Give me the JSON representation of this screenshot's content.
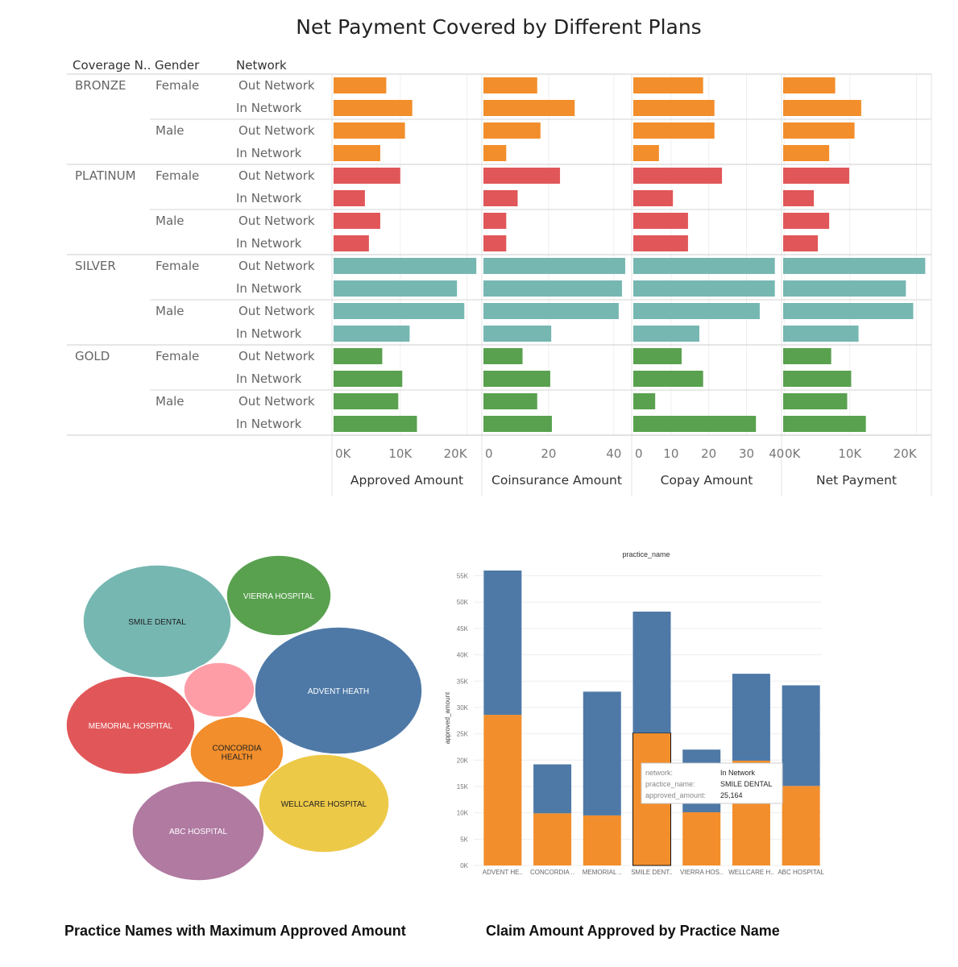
{
  "captions": {
    "bubble": "Practice Names with Maximum Approved Amount",
    "stacked": "Claim Amount Approved by Practice Name"
  },
  "chart_data": [
    {
      "type": "bar",
      "orientation": "horizontal",
      "title": "Net Payment Covered by Different Plans",
      "row_headers": [
        "Coverage N..",
        "Gender",
        "Network"
      ],
      "rows": [
        {
          "coverage": "BRONZE",
          "gender": "Female",
          "network": "Out Network"
        },
        {
          "coverage": "",
          "gender": "",
          "network": "In Network"
        },
        {
          "coverage": "",
          "gender": "Male",
          "network": "Out Network"
        },
        {
          "coverage": "",
          "gender": "",
          "network": "In Network"
        },
        {
          "coverage": "PLATINUM",
          "gender": "Female",
          "network": "Out Network"
        },
        {
          "coverage": "",
          "gender": "",
          "network": "In Network"
        },
        {
          "coverage": "",
          "gender": "Male",
          "network": "Out Network"
        },
        {
          "coverage": "",
          "gender": "",
          "network": "In Network"
        },
        {
          "coverage": "SILVER",
          "gender": "Female",
          "network": "Out Network"
        },
        {
          "coverage": "",
          "gender": "",
          "network": "In Network"
        },
        {
          "coverage": "",
          "gender": "Male",
          "network": "Out Network"
        },
        {
          "coverage": "",
          "gender": "",
          "network": "In Network"
        },
        {
          "coverage": "GOLD",
          "gender": "Female",
          "network": "Out Network"
        },
        {
          "coverage": "",
          "gender": "",
          "network": "In Network"
        },
        {
          "coverage": "",
          "gender": "Male",
          "network": "Out Network"
        },
        {
          "coverage": "",
          "gender": "",
          "network": "In Network"
        }
      ],
      "row_colors": [
        "#f28e2b",
        "#f28e2b",
        "#f28e2b",
        "#f28e2b",
        "#e15759",
        "#e15759",
        "#e15759",
        "#e15759",
        "#76b7b2",
        "#76b7b2",
        "#76b7b2",
        "#76b7b2",
        "#59a14f",
        "#59a14f",
        "#59a14f",
        "#59a14f"
      ],
      "panels": [
        {
          "label": "Approved Amount",
          "xlim": [
            0,
            21500
          ],
          "ticks": [
            "0K",
            "10K",
            "20K"
          ],
          "tick_values": [
            0,
            10000,
            20000
          ],
          "values": [
            7900,
            11800,
            10700,
            7000,
            10000,
            4700,
            7000,
            5300,
            21400,
            18500,
            19600,
            11400,
            7300,
            10300,
            9700,
            12500
          ]
        },
        {
          "label": "Coinsurance Amount",
          "xlim": [
            0,
            44
          ],
          "ticks": [
            "0",
            "20",
            "40"
          ],
          "tick_values": [
            0,
            20,
            40
          ],
          "values": [
            16.5,
            28,
            17.5,
            7,
            23.5,
            10.5,
            7,
            7,
            43.5,
            42.5,
            41.5,
            20.8,
            12,
            20.5,
            16.5,
            21
          ]
        },
        {
          "label": "Copay Amount",
          "xlim": [
            0,
            38
          ],
          "ticks": [
            "0",
            "10",
            "20",
            "30",
            "40"
          ],
          "tick_values": [
            0,
            10,
            20,
            30,
            40
          ],
          "values": [
            18.5,
            21.5,
            21.5,
            6.8,
            23.5,
            10.5,
            14.5,
            14.5,
            37.5,
            37.5,
            33.5,
            17.5,
            12.8,
            18.5,
            5.8,
            32.5
          ]
        },
        {
          "label": "Net Payment",
          "xlim": [
            0,
            21500
          ],
          "ticks": [
            "0K",
            "10K",
            "20K"
          ],
          "tick_values": [
            0,
            10000,
            20000
          ],
          "values": [
            7800,
            11700,
            10700,
            6900,
            9900,
            4600,
            6900,
            5200,
            21300,
            18400,
            19500,
            11300,
            7200,
            10200,
            9600,
            12400
          ]
        }
      ]
    },
    {
      "type": "bubble",
      "bubbles": [
        {
          "label": "SMILE DENTAL",
          "color": "#76b7b2"
        },
        {
          "label": "VIERRA HOSPITAL",
          "color": "#59a14f"
        },
        {
          "label": "ADVENT HEATH",
          "color": "#4e79a7"
        },
        {
          "label": "",
          "color": "#ff9da7"
        },
        {
          "label": "MEMORIAL HOSPITAL",
          "color": "#e15759"
        },
        {
          "label": "CONCORDIA HEALTH",
          "color": "#f28e2b"
        },
        {
          "label": "WELLCARE HOSPITAL",
          "color": "#edc948"
        },
        {
          "label": "ABC HOSPITAL",
          "color": "#b07aa1"
        }
      ]
    },
    {
      "type": "bar",
      "stacked": true,
      "title": "practice_name",
      "ylabel": "approved_amount",
      "ylim": [
        0,
        56000
      ],
      "yticks": [
        "0K",
        "5K",
        "10K",
        "15K",
        "20K",
        "25K",
        "30K",
        "35K",
        "40K",
        "45K",
        "50K",
        "55K"
      ],
      "ytick_values": [
        0,
        5000,
        10000,
        15000,
        20000,
        25000,
        30000,
        35000,
        40000,
        45000,
        50000,
        55000
      ],
      "categories": [
        "ADVENT HE..",
        "CONCORDIA ..",
        "MEMORIAL ..",
        "SMILE DENT..",
        "VIERRA HOS..",
        "WELLCARE H..",
        "ABC HOSPITAL"
      ],
      "series": [
        {
          "color": "#f28e2b",
          "values": [
            28600,
            9900,
            9500,
            25164,
            10100,
            19900,
            15100
          ]
        },
        {
          "color": "#4e79a7",
          "values": [
            27400,
            9300,
            23500,
            23036,
            11900,
            16500,
            19100
          ]
        }
      ],
      "highlight_index": 3,
      "tooltip": {
        "rows": [
          {
            "key": "network:",
            "value": "In Network"
          },
          {
            "key": "practice_name:",
            "value": "SMILE DENTAL"
          },
          {
            "key": "approved_amount:",
            "value": "25,164"
          }
        ]
      }
    }
  ]
}
